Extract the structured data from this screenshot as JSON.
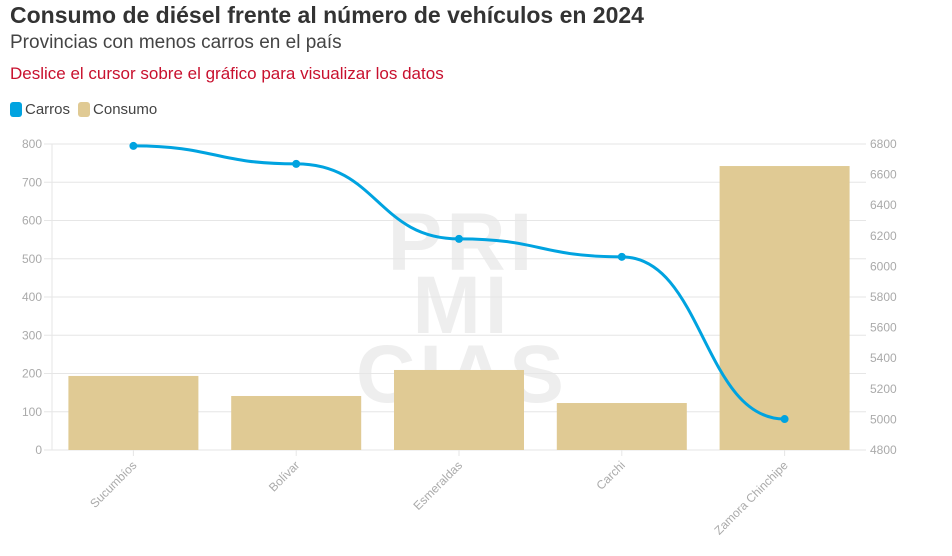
{
  "header": {
    "title": "Consumo de diésel frente al número de vehículos en 2024",
    "subtitle": "Provincias con menos carros en el país",
    "note": "Deslice el cursor sobre el gráfico para visualizar los datos"
  },
  "watermark": "PRIMICIAS",
  "chart_data": {
    "type": "bar",
    "title": "Consumo de diésel frente al número de vehículos en 2024",
    "categories": [
      "Sucumbíos",
      "Bolívar",
      "Esmeraldas",
      "Carchi",
      "Zamora Chinchipe"
    ],
    "series": [
      {
        "name": "Carros",
        "type": "line",
        "axis": "left",
        "color": "#00a3e0",
        "values": [
          795,
          748,
          552,
          505,
          81
        ]
      },
      {
        "name": "Consumo",
        "type": "bar",
        "axis": "right",
        "color": "#e0ca94",
        "values": [
          5284,
          5153,
          5323,
          5107,
          6656
        ]
      }
    ],
    "left_axis": {
      "min": 0,
      "max": 800,
      "ticks": [
        "0",
        "100",
        "200",
        "300",
        "400",
        "500",
        "600",
        "700",
        "800"
      ]
    },
    "right_axis": {
      "min": 4800,
      "max": 6800,
      "ticks": [
        "4800",
        "5000",
        "5200",
        "5400",
        "5600",
        "5800",
        "6000",
        "6200",
        "6400",
        "6600",
        "6800"
      ]
    },
    "legend": [
      "Carros",
      "Consumo"
    ],
    "legend_position": "top-left",
    "grid": true
  }
}
